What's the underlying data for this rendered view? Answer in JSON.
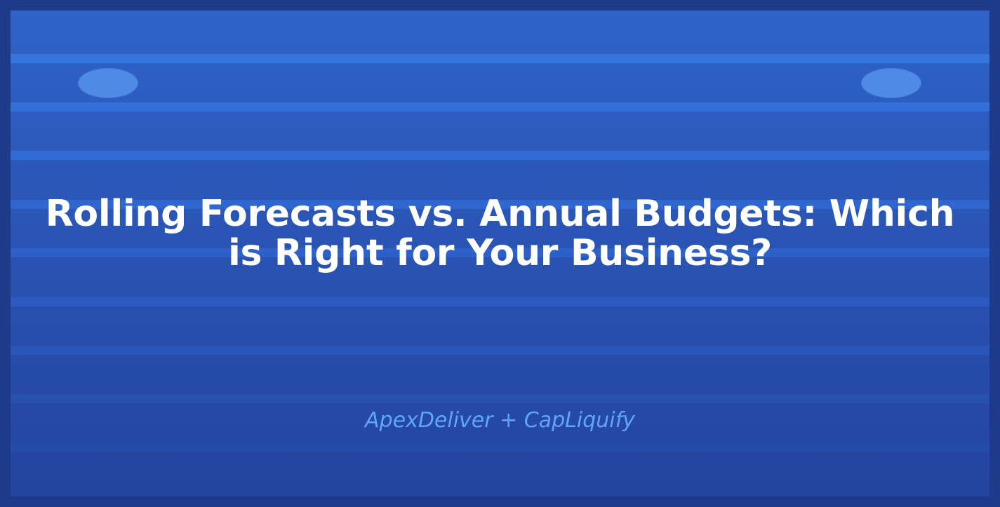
{
  "banner": {
    "title_line1": "Rolling Forecasts vs. Annual Budgets: Which",
    "title_line2": "is Right for Your Business?",
    "subtitle": "ApexDeliver + CapLiquify"
  },
  "colors": {
    "outer_frame": "#1e3a8a",
    "panel_top": "#2e63c9",
    "panel_bottom": "#23449f",
    "stripe_light": "#3674de",
    "stripe_dark": "#2a55b5",
    "dot": "#4d8be6",
    "title_text": "#ffffff",
    "subtitle_text": "#60a5fa"
  }
}
